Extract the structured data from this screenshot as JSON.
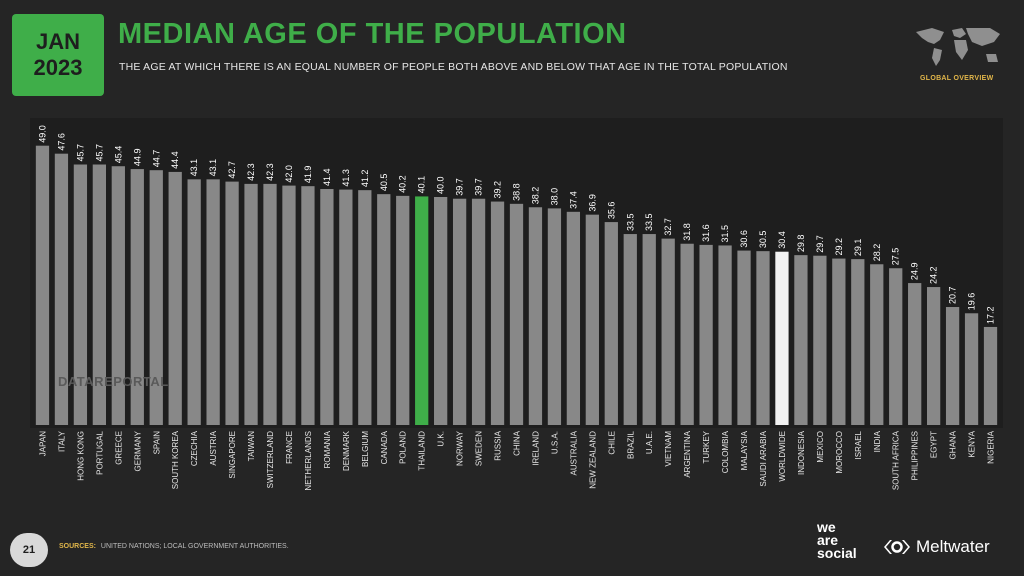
{
  "header": {
    "date_month": "JAN",
    "date_year": "2023",
    "title": "MEDIAN AGE OF THE POPULATION",
    "subtitle": "THE AGE AT WHICH THERE IS AN EQUAL NUMBER OF PEOPLE BOTH ABOVE AND BELOW THAT AGE IN THE TOTAL POPULATION",
    "section_label": "GLOBAL OVERVIEW"
  },
  "watermark": "DATAREPORTAL",
  "footer": {
    "page_number": "21",
    "sources_label": "SOURCES:",
    "sources_text": "UNITED NATIONS; LOCAL GOVERNMENT AUTHORITIES.",
    "brand_we_are_social": [
      "we",
      "are",
      "social"
    ],
    "brand_meltwater": "Meltwater"
  },
  "colors": {
    "accent_green": "#3fae49",
    "bar_default": "#888888",
    "bar_worldwide": "#f2f2f2",
    "label_gold": "#e1b64a"
  },
  "chart_data": {
    "type": "bar",
    "title": "MEDIAN AGE OF THE POPULATION",
    "xlabel": "",
    "ylabel": "",
    "ylim": [
      0,
      50
    ],
    "grid": false,
    "categories": [
      "JAPAN",
      "ITALY",
      "HONG KONG",
      "PORTUGAL",
      "GREECE",
      "GERMANY",
      "SPAIN",
      "SOUTH KOREA",
      "CZECHIA",
      "AUSTRIA",
      "SINGAPORE",
      "TAIWAN",
      "SWITZERLAND",
      "FRANCE",
      "NETHERLANDS",
      "ROMANIA",
      "DENMARK",
      "BELGIUM",
      "CANADA",
      "POLAND",
      "THAILAND",
      "U.K.",
      "NORWAY",
      "SWEDEN",
      "RUSSIA",
      "CHINA",
      "IRELAND",
      "U.S.A.",
      "AUSTRALIA",
      "NEW ZEALAND",
      "CHILE",
      "BRAZIL",
      "U.A.E.",
      "VIETNAM",
      "ARGENTINA",
      "TURKEY",
      "COLOMBIA",
      "MALAYSIA",
      "SAUDI ARABIA",
      "WORLDWIDE",
      "INDONESIA",
      "MEXICO",
      "MOROCCO",
      "ISRAEL",
      "INDIA",
      "SOUTH AFRICA",
      "PHILIPPINES",
      "EGYPT",
      "GHANA",
      "KENYA",
      "NIGERIA"
    ],
    "values": [
      49.0,
      47.6,
      45.7,
      45.7,
      45.4,
      44.9,
      44.7,
      44.4,
      43.1,
      43.1,
      42.7,
      42.3,
      42.3,
      42.0,
      41.9,
      41.4,
      41.3,
      41.2,
      40.5,
      40.2,
      40.1,
      40.0,
      39.7,
      39.7,
      39.2,
      38.8,
      38.2,
      38.0,
      37.4,
      36.9,
      35.6,
      33.5,
      33.5,
      32.7,
      31.8,
      31.6,
      31.5,
      30.6,
      30.5,
      30.4,
      29.8,
      29.7,
      29.2,
      29.1,
      28.2,
      27.5,
      24.9,
      24.2,
      20.7,
      19.6,
      17.2
    ],
    "highlight": {
      "THAILAND": "green",
      "WORLDWIDE": "white"
    }
  }
}
